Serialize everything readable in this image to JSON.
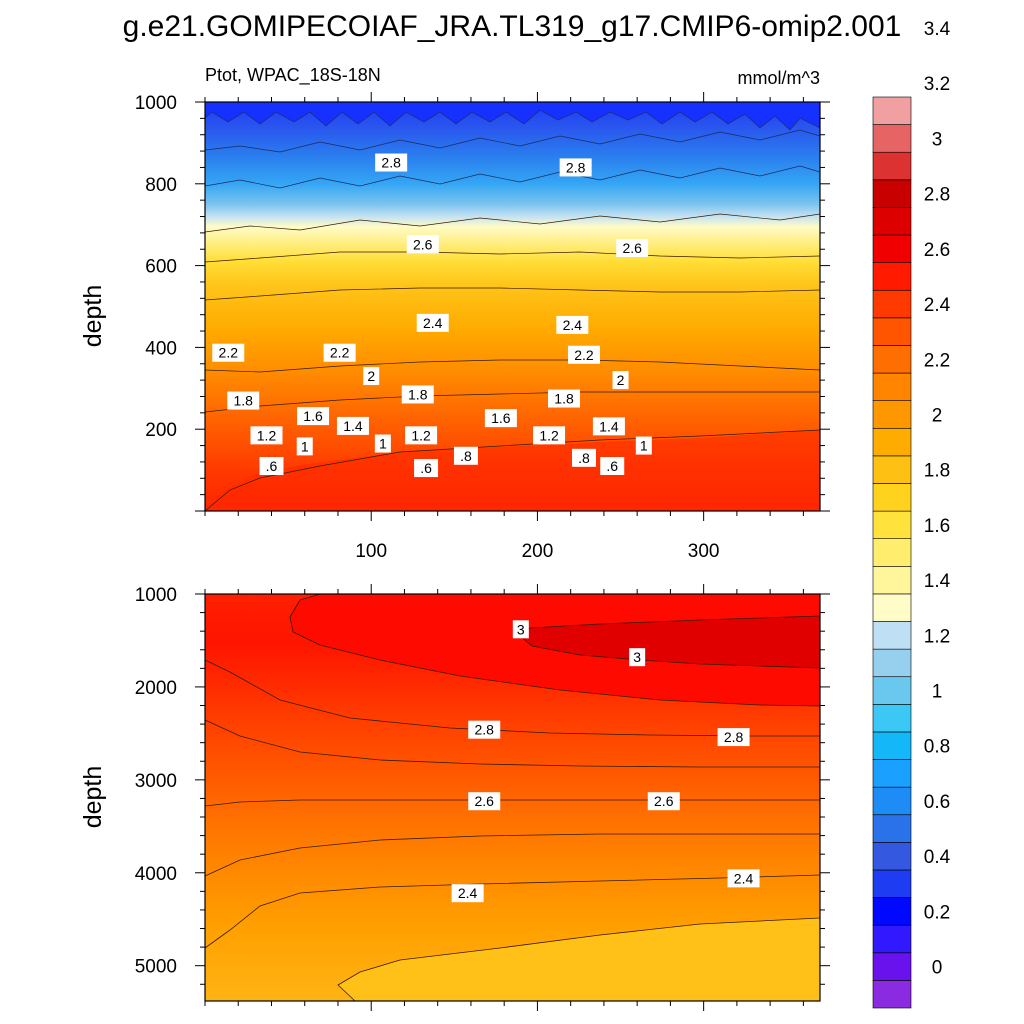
{
  "figure_title": "g.e21.GOMIPECOIAF_JRA.TL319_g17.CMIP6-omip2.001",
  "colorbar": {
    "levels": [
      "0",
      "0.2",
      "0.4",
      "0.6",
      "0.8",
      "1",
      "1.2",
      "1.4",
      "1.6",
      "1.8",
      "2",
      "2.2",
      "2.4",
      "2.6",
      "2.8",
      "3",
      "3.2",
      "3.4"
    ],
    "colors": [
      "#8a2be2",
      "#6a12ee",
      "#3218ff",
      "#0008ff",
      "#1e3cf2",
      "#3558e0",
      "#2a72ea",
      "#1e8cf5",
      "#1aa0ff",
      "#14b8f8",
      "#3cc8f4",
      "#6ac8ee",
      "#96d0ee",
      "#bfe0f4",
      "#fffcc8",
      "#fff59a",
      "#ffee6e",
      "#ffe23c",
      "#ffd21e",
      "#ffc014",
      "#ffac00",
      "#ff9800",
      "#ff8400",
      "#ff6e00",
      "#ff5400",
      "#ff3a00",
      "#ff1a00",
      "#f00000",
      "#dc0000",
      "#c80000",
      "#dc3232",
      "#e66464",
      "#f0a0a0"
    ]
  },
  "chart_data": [
    {
      "type": "heatmap",
      "panel": "upper",
      "left_title": "Ptot, WPAC_18S-18N",
      "right_title": "mmol/m^3",
      "ylabel": "depth",
      "xlabel": "",
      "xlim": [
        0,
        370
      ],
      "ylim": [
        1000,
        0
      ],
      "xticks": [
        "100",
        "200",
        "300"
      ],
      "yticks": [
        "200",
        "400",
        "600",
        "800",
        "1000"
      ],
      "contour_labels": [
        {
          "text": ".6",
          "x": 40,
          "y": 110
        },
        {
          "text": ".6",
          "x": 133,
          "y": 105
        },
        {
          "text": ".8",
          "x": 157,
          "y": 135
        },
        {
          "text": ".8",
          "x": 228,
          "y": 130
        },
        {
          "text": ".6",
          "x": 245,
          "y": 110
        },
        {
          "text": "1",
          "x": 60,
          "y": 158
        },
        {
          "text": "1",
          "x": 107,
          "y": 165
        },
        {
          "text": "1",
          "x": 264,
          "y": 160
        },
        {
          "text": "1.2",
          "x": 37,
          "y": 185
        },
        {
          "text": "1.4",
          "x": 89,
          "y": 208
        },
        {
          "text": "1.2",
          "x": 130,
          "y": 185
        },
        {
          "text": "1.2",
          "x": 207,
          "y": 185
        },
        {
          "text": "1.4",
          "x": 243,
          "y": 207
        },
        {
          "text": "1.6",
          "x": 65,
          "y": 232
        },
        {
          "text": "1.6",
          "x": 178,
          "y": 227
        },
        {
          "text": "1.8",
          "x": 23,
          "y": 270
        },
        {
          "text": "1.8",
          "x": 128,
          "y": 285
        },
        {
          "text": "1.8",
          "x": 216,
          "y": 275
        },
        {
          "text": "2",
          "x": 100,
          "y": 330
        },
        {
          "text": "2",
          "x": 250,
          "y": 320
        },
        {
          "text": "2.2",
          "x": 14,
          "y": 387
        },
        {
          "text": "2.2",
          "x": 81,
          "y": 387
        },
        {
          "text": "2.2",
          "x": 228,
          "y": 382
        },
        {
          "text": "2.4",
          "x": 137,
          "y": 460
        },
        {
          "text": "2.4",
          "x": 221,
          "y": 455
        },
        {
          "text": "2.6",
          "x": 131,
          "y": 652
        },
        {
          "text": "2.6",
          "x": 257,
          "y": 643
        },
        {
          "text": "2.8",
          "x": 112,
          "y": 852
        },
        {
          "text": "2.8",
          "x": 223,
          "y": 840
        }
      ]
    },
    {
      "type": "heatmap",
      "panel": "lower",
      "ylabel": "depth",
      "xlabel": "",
      "xlim": [
        0,
        370
      ],
      "ylim": [
        1000,
        5380
      ],
      "yticks": [
        "1000",
        "2000",
        "3000",
        "4000",
        "5000"
      ],
      "contour_labels": [
        {
          "text": "3",
          "x": 190,
          "y": 1380
        },
        {
          "text": "3",
          "x": 260,
          "y": 1680
        },
        {
          "text": "2.8",
          "x": 168,
          "y": 2460
        },
        {
          "text": "2.8",
          "x": 318,
          "y": 2540
        },
        {
          "text": "2.6",
          "x": 168,
          "y": 3230
        },
        {
          "text": "2.6",
          "x": 276,
          "y": 3230
        },
        {
          "text": "2.4",
          "x": 158,
          "y": 4220
        },
        {
          "text": "2.4",
          "x": 324,
          "y": 4060
        }
      ]
    }
  ]
}
